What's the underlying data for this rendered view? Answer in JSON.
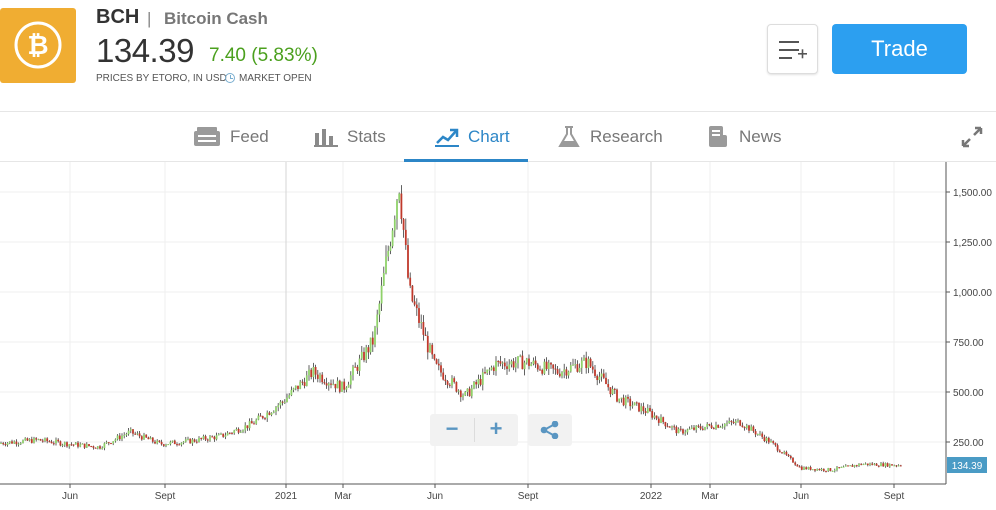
{
  "instrument": {
    "symbol": "BCH",
    "separator": "|",
    "name": "Bitcoin Cash",
    "price": "134.39",
    "change": "7.40 (5.83%)",
    "source": "PRICES BY ETORO, IN USD",
    "market_status": "MARKET OPEN",
    "logo_color": "#f0ad32",
    "change_color": "#4ba01e"
  },
  "actions": {
    "watchlist_icon": "add-to-list-icon",
    "trade_label": "Trade",
    "trade_color": "#2c9ff0"
  },
  "tabs": [
    {
      "label": "Feed",
      "icon": "feed-icon",
      "active": false
    },
    {
      "label": "Stats",
      "icon": "stats-icon",
      "active": false
    },
    {
      "label": "Chart",
      "icon": "chart-icon",
      "active": true
    },
    {
      "label": "Research",
      "icon": "flask-icon",
      "active": false
    },
    {
      "label": "News",
      "icon": "news-icon",
      "active": false
    }
  ],
  "accent_color": "#2c86c7",
  "chart_controls": {
    "zoom_out": "−",
    "zoom_in": "+",
    "share_icon": "share-icon"
  },
  "chart_data": {
    "type": "line",
    "style": "candlestick",
    "x_tick_labels": [
      "Jun",
      "Sept",
      "2021",
      "Mar",
      "Jun",
      "Sept",
      "2022",
      "Mar",
      "Jun",
      "Sept"
    ],
    "y_ticks": [
      250,
      500,
      750,
      1000,
      1250,
      1500
    ],
    "y_tick_labels": [
      "250.00",
      "500.00",
      "750.00",
      "1,000.00",
      "1,250.00",
      "1,500.00"
    ],
    "ylim": [
      0,
      1620
    ],
    "last_value_label": "134.39",
    "grid": true,
    "series": [
      {
        "x": [
          "2020-04",
          "2020-05",
          "2020-06",
          "2020-07",
          "2020-08",
          "2020-09",
          "2020-10",
          "2020-11",
          "2020-12",
          "2021-01",
          "2021-02",
          "2021-03",
          "2021-04",
          "2021-05-10",
          "2021-05-20",
          "2021-06",
          "2021-07",
          "2021-08",
          "2021-09",
          "2021-10",
          "2021-11",
          "2021-12",
          "2022-01",
          "2022-02",
          "2022-03",
          "2022-04",
          "2022-05",
          "2022-06",
          "2022-07",
          "2022-08",
          "2022-09"
        ],
        "values": [
          245,
          260,
          240,
          225,
          300,
          240,
          255,
          280,
          340,
          450,
          600,
          520,
          760,
          1550,
          1000,
          630,
          480,
          640,
          650,
          600,
          650,
          470,
          400,
          300,
          330,
          350,
          250,
          120,
          110,
          140,
          134
        ]
      }
    ]
  }
}
